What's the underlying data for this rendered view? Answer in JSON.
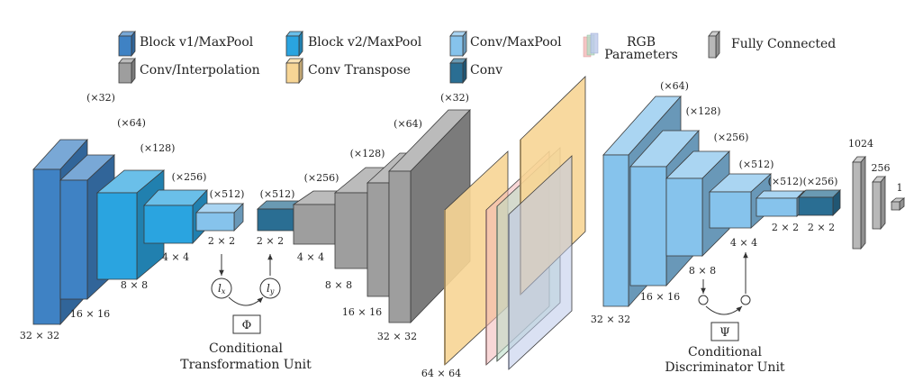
{
  "legend": {
    "block_v1": "Block v1/MaxPool",
    "block_v2": "Block v2/MaxPool",
    "conv_maxpool": "Conv/MaxPool",
    "rgb_parameters": [
      "RGB",
      "Parameters"
    ],
    "fully_connected": "Fully Connected",
    "conv_interpolation": "Conv/Interpolation",
    "conv_transpose": "Conv Transpose",
    "conv": "Conv"
  },
  "colors": {
    "block_v1": "#3f82c4",
    "block_v2": "#2aa4e0",
    "conv_maxpool": "#86c3ec",
    "conv": "#2a6e93",
    "conv_interpolation": "#9e9e9e",
    "conv_transpose": "#f7d595",
    "fully_connected": "#b8b8b8",
    "rgb_r": "#f3b6b6",
    "rgb_g": "#b8dcc4",
    "rgb_b": "#bcc8ea"
  },
  "encoder": {
    "channels": [
      "(×32)",
      "(×64)",
      "(×128)",
      "(×256)",
      "(×512)"
    ],
    "sizes": [
      "32 × 32",
      "16 × 16",
      "8 × 8",
      "4 × 4",
      "2 × 2"
    ]
  },
  "transform_unit": {
    "lx": "l",
    "lx_sub": "x",
    "ly": "l",
    "ly_sub": "y",
    "phi": "Φ",
    "caption": [
      "Conditional",
      "Transformation Unit"
    ]
  },
  "decoder": {
    "channels": [
      "(×512)",
      "(×256)",
      "(×128)",
      "(×64)",
      "(×32)"
    ],
    "sizes": [
      "2 × 2",
      "4 × 4",
      "8 × 8",
      "16 × 16",
      "32 × 32"
    ],
    "output_size": "64 × 64"
  },
  "discriminator": {
    "channels": [
      "(×64)",
      "(×128)",
      "(×256)",
      "(×512)",
      "(×512)",
      "(×256)"
    ],
    "sizes": [
      "32 × 32",
      "16 × 16",
      "8 × 8",
      "4 × 4",
      "2 × 2",
      "2 × 2"
    ],
    "psi": "Ψ",
    "caption": [
      "Conditional",
      "Discriminator Unit"
    ]
  },
  "fully_connected": {
    "units": [
      "1024",
      "256",
      "1"
    ]
  }
}
